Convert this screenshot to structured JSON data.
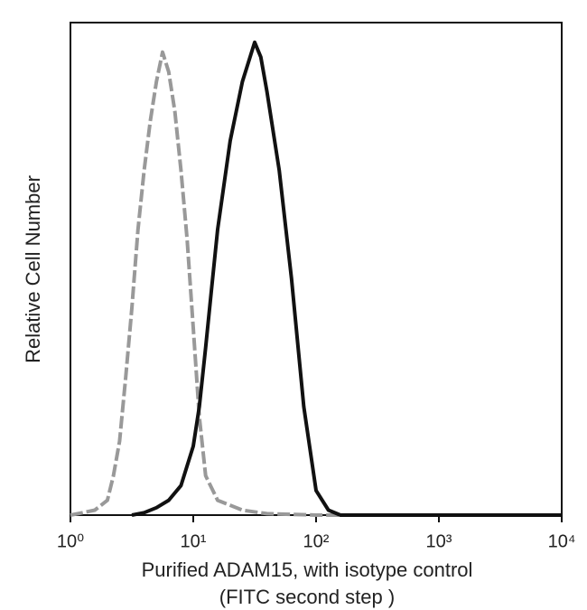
{
  "chart_data": {
    "type": "line",
    "xlabel": "Purified  ADAM15,  with isotype control",
    "xlabel2": "(FITC second step )",
    "ylabel": "Relative Cell Number",
    "xscale": "log",
    "xlim": [
      1,
      10000
    ],
    "ylim": [
      0,
      100
    ],
    "xticks": [
      {
        "value": 1,
        "label": "10⁰"
      },
      {
        "value": 10,
        "label": "10¹"
      },
      {
        "value": 100,
        "label": "10²"
      },
      {
        "value": 1000,
        "label": "10³"
      },
      {
        "value": 10000,
        "label": "10⁴"
      }
    ],
    "series": [
      {
        "color": "#999999",
        "dashed": true,
        "x": [
          1,
          1.26,
          1.58,
          2,
          2.24,
          2.51,
          2.82,
          3.16,
          3.55,
          3.98,
          4.47,
          5.01,
          5.62,
          6.31,
          7.08,
          7.94,
          8.91,
          10,
          11.2,
          12.6,
          15.8,
          25.1,
          39.8,
          100,
          10000
        ],
        "values": [
          0,
          0.5,
          1,
          3,
          8,
          15,
          28,
          42,
          58,
          70,
          80,
          88,
          94,
          90,
          82,
          70,
          56,
          38,
          20,
          8,
          3,
          1,
          0.3,
          0,
          0
        ]
      },
      {
        "color": "#111111",
        "dashed": false,
        "x": [
          3.16,
          3.98,
          5.01,
          6.31,
          7.94,
          10,
          11.2,
          12.6,
          14.1,
          15.8,
          20,
          25.1,
          31.6,
          35.5,
          39.8,
          50.1,
          63.1,
          79.4,
          100,
          126,
          158,
          10000
        ],
        "values": [
          0,
          0.5,
          1.5,
          3,
          6,
          14,
          22,
          34,
          46,
          58,
          76,
          88,
          96,
          93,
          86,
          70,
          48,
          22,
          5,
          1,
          0,
          0
        ]
      }
    ]
  }
}
